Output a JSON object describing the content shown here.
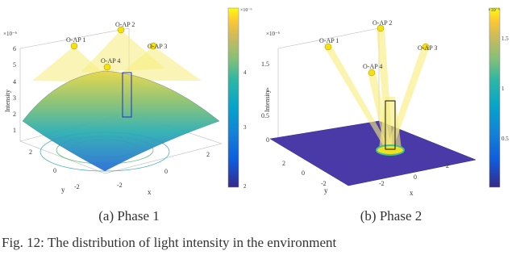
{
  "panels": [
    {
      "exponent": "×10⁻⁶",
      "z_label": "Intensity",
      "z_ticks": [
        "6",
        "5",
        "4",
        "3",
        "2",
        "1"
      ],
      "y_label": "y",
      "y_ticks": [
        "2",
        "0",
        "-2"
      ],
      "x_label": "x",
      "x_ticks": [
        "-2",
        "0",
        "2"
      ],
      "ap_labels": [
        "O-AP 1",
        "O-AP 2",
        "O-AP 3",
        "O-AP 4"
      ],
      "colorbar_exponent": "×10⁻⁶",
      "colorbar_ticks": [
        "4",
        "3",
        "2"
      ],
      "caption": "(a) Phase 1"
    },
    {
      "exponent": "×10⁻⁶",
      "z_label": "Intensity",
      "z_ticks": [
        "1.5",
        "1",
        "0.5",
        "0"
      ],
      "y_label": "y",
      "y_ticks": [
        "2",
        "0",
        "-2"
      ],
      "x_label": "x",
      "x_ticks": [
        "-2",
        "0",
        "2"
      ],
      "ap_labels": [
        "O-AP 1",
        "O-AP 2",
        "O-AP 3",
        "O-AP 4"
      ],
      "colorbar_exponent": "×10⁻⁶",
      "colorbar_ticks": [
        "1.5",
        "1",
        "0.5"
      ],
      "caption": "(b) Phase 2"
    }
  ],
  "caption": "Fig. 12: The distribution of light intensity in the environment"
}
